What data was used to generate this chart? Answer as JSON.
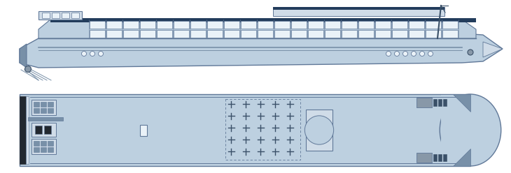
{
  "bg_color": "#ffffff",
  "ship_fill": "#bdd0e0",
  "ship_edge": "#607898",
  "dark_blue": "#233d5c",
  "medium_blue": "#7890a8",
  "light_blue": "#d0dce8",
  "window_fill": "#eaf2f8",
  "window_edge": "#607898",
  "dark_accent": "#3a5068",
  "gray_fill": "#8898a8",
  "black_bar": "#222830",
  "figsize": [
    7.3,
    2.48
  ],
  "dpi": 100
}
